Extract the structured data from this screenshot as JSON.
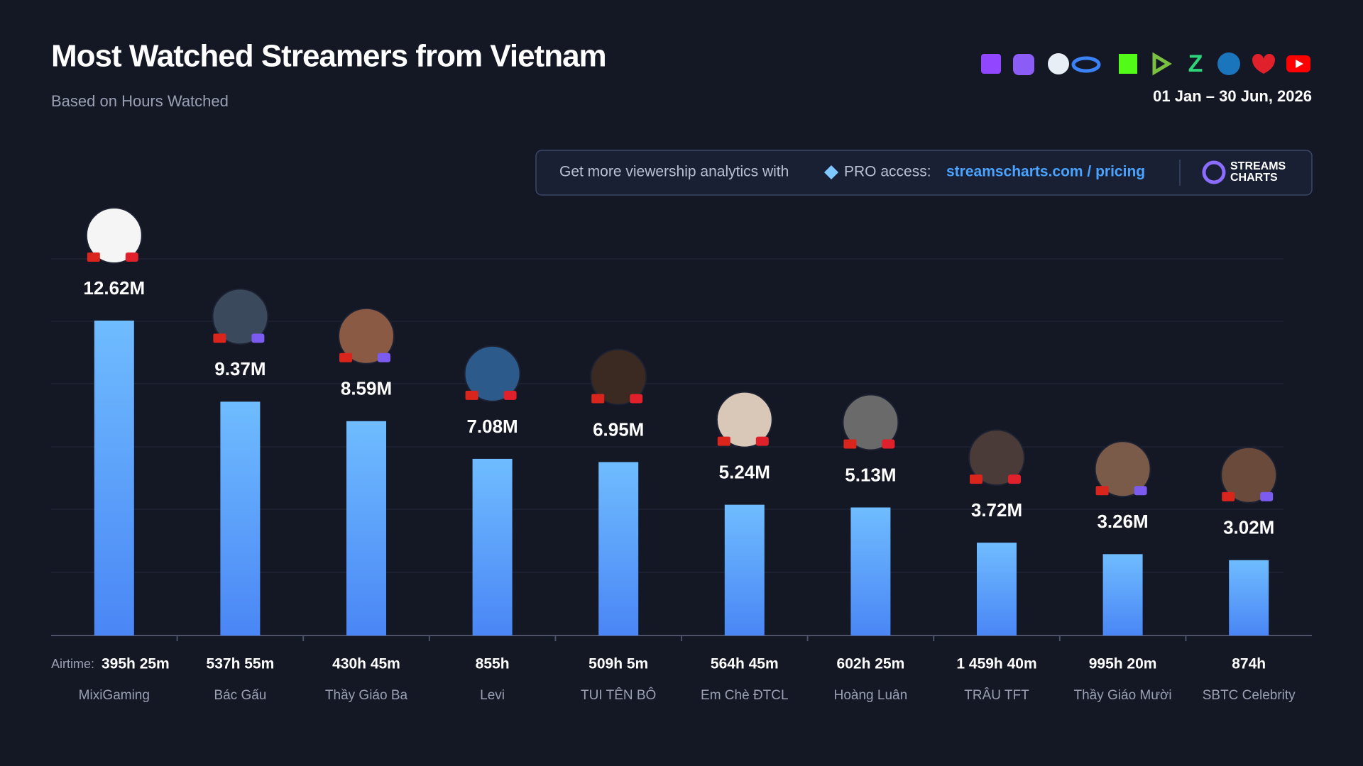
{
  "chart_data": {
    "type": "bar",
    "title": "Most Watched Streamers from Vietnam",
    "subtitle": "Based on Hours Watched",
    "date_range": "01 Jan – 30 Jun, 2026",
    "promo": {
      "text": "Get more viewership analytics with",
      "pro": "PRO access:",
      "link": "streamscharts.com / pricing",
      "logo_top": "STREAMS",
      "logo_bottom": "CHARTS"
    },
    "airtime_label": "Airtime:",
    "categories": [
      "MixiGaming",
      "Bác Gấu",
      "Thầy Giáo Ba",
      "Levi",
      "TUI TÊN BÔ",
      "Em Chè ĐTCL",
      "Hoàng Luân",
      "TRÂU TFT",
      "Thầy Giáo Mười",
      "SBTC Celebrity"
    ],
    "values": [
      12.62,
      9.37,
      8.59,
      7.08,
      6.95,
      5.24,
      5.13,
      3.72,
      3.26,
      3.02
    ],
    "value_labels": [
      "12.62M",
      "9.37M",
      "8.59M",
      "7.08M",
      "6.95M",
      "5.24M",
      "5.13M",
      "3.72M",
      "3.26M",
      "3.02M"
    ],
    "airtime": [
      "395h 25m",
      "537h 55m",
      "430h 45m",
      "855h",
      "509h 5m",
      "564h 45m",
      "602h 25m",
      "1 459h 40m",
      "995h 20m",
      "874h"
    ],
    "color": "#5aa6ff"
  }
}
